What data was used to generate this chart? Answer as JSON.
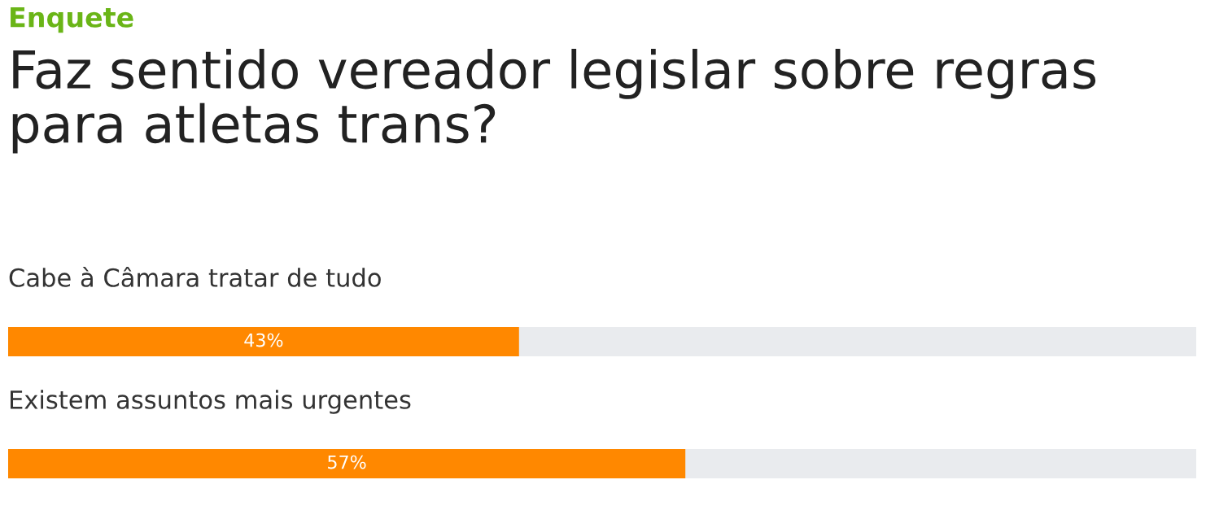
{
  "chart_data": {
    "type": "bar",
    "orientation": "horizontal",
    "subtitle": "Enquete",
    "title": "Faz sentido vereador legislar sobre regras para atletas trans?",
    "categories": [
      "Cabe à Câmara tratar de tudo",
      "Existem assuntos mais urgentes"
    ],
    "values": [
      43,
      57
    ],
    "value_labels": [
      "43%",
      "57%"
    ],
    "color": "#ff8800",
    "xlim": [
      0,
      100
    ],
    "tick_labels": false
  }
}
